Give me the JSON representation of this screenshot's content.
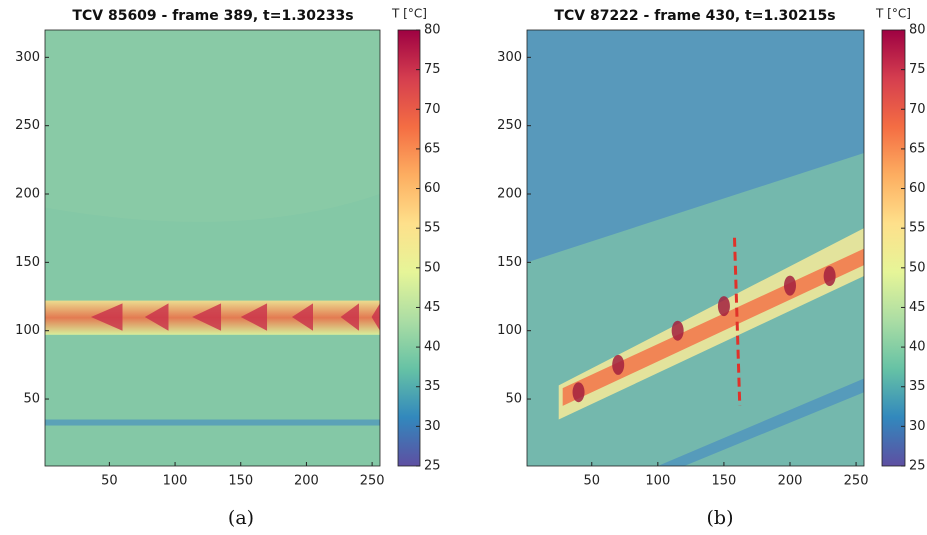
{
  "chart_data": [
    {
      "type": "heatmap",
      "title": "TCV 85609 - frame 389, t=1.30233s",
      "xlim": [
        1,
        256
      ],
      "ylim": [
        1,
        320
      ],
      "xticks": [
        50,
        100,
        150,
        200,
        250
      ],
      "yticks": [
        50,
        100,
        150,
        200,
        250,
        300
      ],
      "colorbar": {
        "label": "T [°C]",
        "lim": [
          25,
          80
        ],
        "ticks": [
          25,
          30,
          35,
          40,
          45,
          50,
          55,
          60,
          65,
          70,
          75,
          80
        ]
      },
      "colormap": [
        "#5e4fa2",
        "#3288bd",
        "#66c2a5",
        "#abdda4",
        "#e6f598",
        "#fee08b",
        "#fdae61",
        "#f46d43",
        "#d53e4f",
        "#9e0142"
      ],
      "caption": "(a)"
    },
    {
      "type": "heatmap",
      "title": "TCV 87222 - frame 430, t=1.30215s",
      "xlim": [
        1,
        256
      ],
      "ylim": [
        1,
        320
      ],
      "xticks": [
        50,
        100,
        150,
        200,
        250
      ],
      "yticks": [
        50,
        100,
        150,
        200,
        250,
        300
      ],
      "colorbar": {
        "label": "T [°C]",
        "lim": [
          25,
          80
        ],
        "ticks": [
          25,
          30,
          35,
          40,
          45,
          50,
          55,
          60,
          65,
          70,
          75,
          80
        ]
      },
      "colormap": [
        "#5e4fa2",
        "#3288bd",
        "#66c2a5",
        "#abdda4",
        "#e6f598",
        "#fee08b",
        "#fdae61",
        "#f46d43",
        "#d53e4f",
        "#9e0142"
      ],
      "caption": "(b)"
    }
  ]
}
